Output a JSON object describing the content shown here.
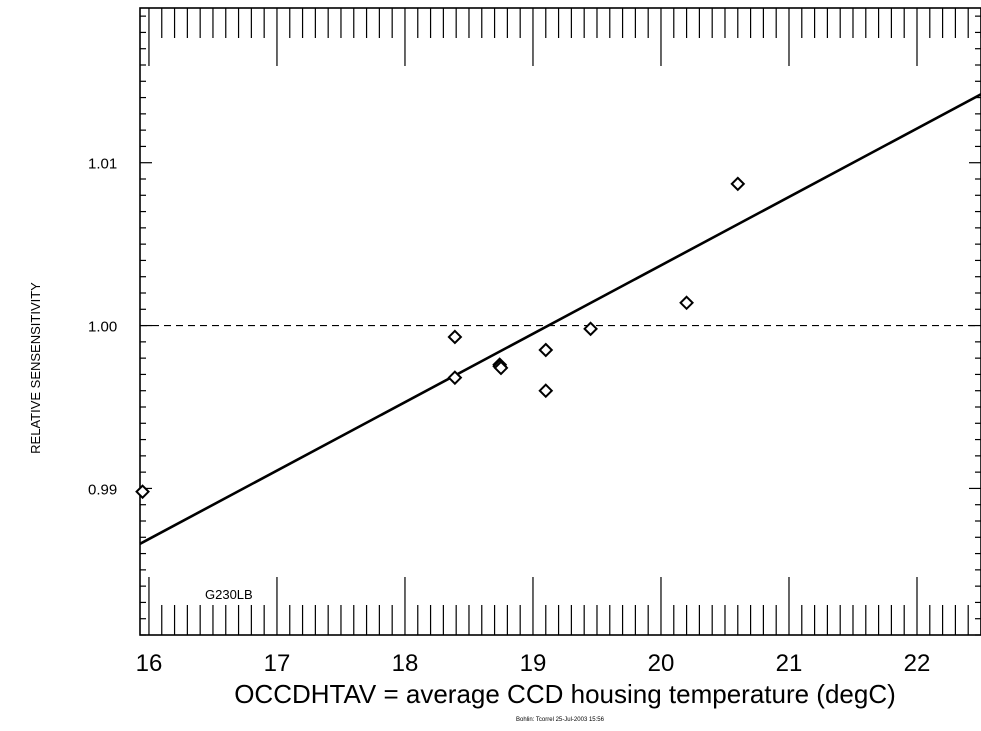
{
  "chart_data": {
    "type": "scatter",
    "title": "",
    "xlabel": "OCCDHTAV =  average CCD housing temperature (degC)",
    "ylabel": "RELATIVE SENSENSITIVITY",
    "xlim": [
      15.93,
      22.5
    ],
    "ylim": [
      0.981,
      1.0195
    ],
    "x_ticks": [
      "16",
      "17",
      "18",
      "19",
      "20",
      "21",
      "22"
    ],
    "x_tick_values": [
      16,
      17,
      18,
      19,
      20,
      21,
      22
    ],
    "y_ticks": [
      "0.99",
      "1.00",
      "1.01"
    ],
    "y_tick_values": [
      0.99,
      1.0,
      1.01
    ],
    "grid": false,
    "points": [
      {
        "x": 15.95,
        "y": 0.9898
      },
      {
        "x": 18.39,
        "y": 0.9968
      },
      {
        "x": 18.39,
        "y": 0.9993
      },
      {
        "x": 18.74,
        "y": 0.9976
      },
      {
        "x": 18.74,
        "y": 0.9975
      },
      {
        "x": 18.75,
        "y": 0.9974
      },
      {
        "x": 19.1,
        "y": 0.9985
      },
      {
        "x": 19.1,
        "y": 0.996
      },
      {
        "x": 19.45,
        "y": 0.9998
      },
      {
        "x": 20.2,
        "y": 1.0014
      },
      {
        "x": 20.6,
        "y": 1.0087
      }
    ],
    "fit_line": {
      "x": [
        15.93,
        22.5
      ],
      "y": [
        0.9866,
        1.0142
      ]
    },
    "reference_line": {
      "y": 1.0
    },
    "annotation": "G230LB",
    "footer": "Bohlin: Tcorrel  25-Jul-2003 15:56"
  }
}
